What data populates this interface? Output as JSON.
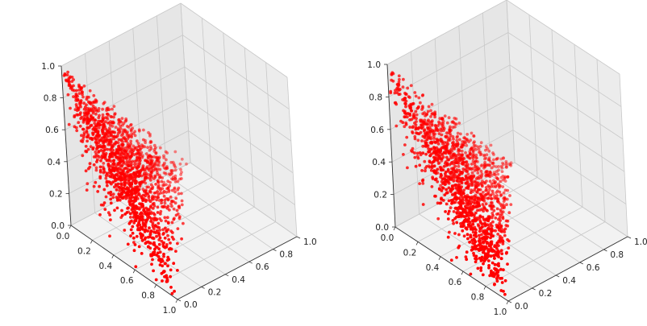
{
  "chart_data": [
    {
      "type": "scatter",
      "dimensions": 3,
      "title": "",
      "xlabel": "",
      "ylabel": "",
      "zlabel": "",
      "xlim": [
        0,
        1
      ],
      "ylim": [
        0,
        1
      ],
      "zlim": [
        0,
        1
      ],
      "x_ticks": [
        "0.0",
        "0.2",
        "0.4",
        "0.6",
        "0.8",
        "1.0"
      ],
      "y_ticks": [
        "0.0",
        "0.2",
        "0.4",
        "0.6",
        "0.8",
        "1.0"
      ],
      "z_ticks": [
        "0.0",
        "0.2",
        "0.4",
        "0.6",
        "0.8",
        "1.0"
      ],
      "grid": true,
      "marker_color": "#ff0000",
      "series": [
        {
          "approx_point_count": 1500,
          "distribution": "points filling the simplex x + y + z <= 1, dense near the back vertex",
          "points": [
            [
              0.05,
              0.05,
              0.85
            ],
            [
              0.03,
              0.02,
              0.95
            ],
            [
              0.1,
              0.08,
              0.7
            ],
            [
              0.15,
              0.1,
              0.6
            ],
            [
              0.2,
              0.1,
              0.55
            ],
            [
              0.1,
              0.2,
              0.6
            ],
            [
              0.25,
              0.15,
              0.5
            ],
            [
              0.3,
              0.2,
              0.4
            ],
            [
              0.05,
              0.3,
              0.5
            ],
            [
              0.4,
              0.1,
              0.4
            ],
            [
              0.5,
              0.1,
              0.3
            ],
            [
              0.1,
              0.5,
              0.3
            ],
            [
              0.6,
              0.1,
              0.2
            ],
            [
              0.1,
              0.6,
              0.2
            ],
            [
              0.7,
              0.1,
              0.1
            ],
            [
              0.1,
              0.7,
              0.1
            ],
            [
              0.8,
              0.05,
              0.05
            ],
            [
              0.05,
              0.8,
              0.05
            ],
            [
              0.95,
              0.02,
              0.02
            ],
            [
              0.02,
              0.95,
              0.02
            ],
            [
              0.3,
              0.3,
              0.3
            ],
            [
              0.4,
              0.4,
              0.1
            ],
            [
              0.5,
              0.3,
              0.1
            ],
            [
              0.3,
              0.5,
              0.1
            ],
            [
              0.2,
              0.3,
              0.4
            ],
            [
              0.35,
              0.05,
              0.55
            ],
            [
              0.05,
              0.4,
              0.45
            ],
            [
              0.6,
              0.3,
              0.05
            ],
            [
              0.45,
              0.45,
              0.05
            ],
            [
              0.15,
              0.15,
              0.65
            ]
          ]
        }
      ]
    },
    {
      "type": "scatter",
      "dimensions": 3,
      "title": "",
      "xlabel": "",
      "ylabel": "",
      "zlabel": "",
      "xlim": [
        0,
        1
      ],
      "ylim": [
        0,
        1
      ],
      "zlim": [
        0,
        1
      ],
      "x_ticks": [
        "0.0",
        "0.2",
        "0.4",
        "0.6",
        "0.8",
        "1.0"
      ],
      "y_ticks": [
        "0.0",
        "0.2",
        "0.4",
        "0.6",
        "0.8",
        "1.0"
      ],
      "z_ticks": [
        "0.0",
        "0.2",
        "0.4",
        "0.6",
        "0.8",
        "1.0"
      ],
      "grid": true,
      "marker_color": "#ff0000",
      "series": [
        {
          "approx_point_count": 1500,
          "distribution": "points spread uniformly over the simplex x + y + z <= 1",
          "points": [
            [
              0.02,
              0.02,
              0.95
            ],
            [
              0.05,
              0.05,
              0.85
            ],
            [
              0.1,
              0.05,
              0.8
            ],
            [
              0.05,
              0.1,
              0.8
            ],
            [
              0.2,
              0.1,
              0.65
            ],
            [
              0.1,
              0.2,
              0.65
            ],
            [
              0.3,
              0.1,
              0.55
            ],
            [
              0.1,
              0.3,
              0.55
            ],
            [
              0.4,
              0.1,
              0.45
            ],
            [
              0.1,
              0.4,
              0.45
            ],
            [
              0.5,
              0.1,
              0.35
            ],
            [
              0.1,
              0.5,
              0.35
            ],
            [
              0.6,
              0.1,
              0.25
            ],
            [
              0.1,
              0.6,
              0.25
            ],
            [
              0.7,
              0.1,
              0.15
            ],
            [
              0.1,
              0.7,
              0.15
            ],
            [
              0.85,
              0.05,
              0.05
            ],
            [
              0.05,
              0.85,
              0.05
            ],
            [
              0.95,
              0.02,
              0.01
            ],
            [
              0.02,
              0.95,
              0.01
            ],
            [
              0.3,
              0.3,
              0.35
            ],
            [
              0.45,
              0.45,
              0.05
            ],
            [
              0.25,
              0.65,
              0.05
            ],
            [
              0.65,
              0.25,
              0.05
            ],
            [
              0.35,
              0.35,
              0.25
            ],
            [
              0.2,
              0.4,
              0.35
            ],
            [
              0.4,
              0.2,
              0.35
            ],
            [
              0.5,
              0.4,
              0.05
            ],
            [
              0.15,
              0.15,
              0.65
            ],
            [
              0.75,
              0.15,
              0.05
            ]
          ]
        }
      ]
    }
  ]
}
